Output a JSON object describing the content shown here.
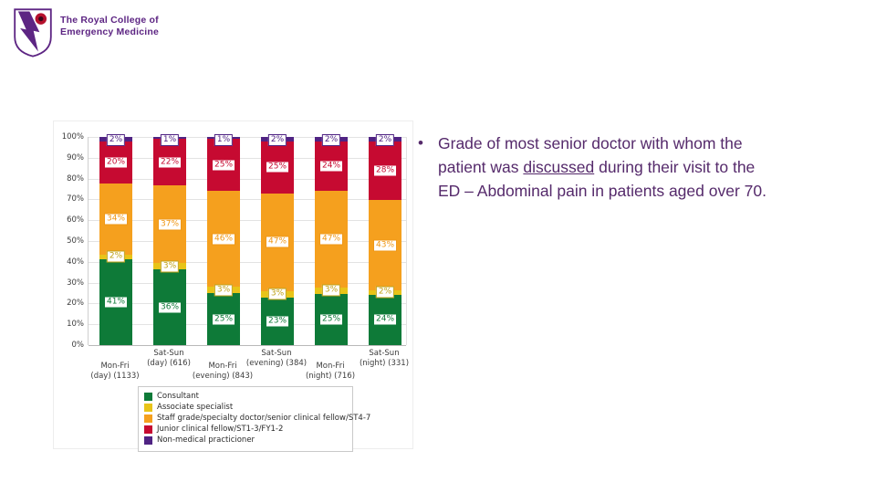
{
  "logo": {
    "org_line1": "The Royal College of",
    "org_line2": "Emergency Medicine",
    "brand_purple": "#5d2583",
    "poppy_red": "#b5112d"
  },
  "bullet_text": {
    "bullet": "•",
    "line1": "Grade of most senior doctor with whom the",
    "line2_pre": "patient was ",
    "line2_underlined": "discussed",
    "line2_post": " during their visit to the",
    "line3": "ED – Abdominal pain in patients aged over 70.",
    "text_color": "#552a6b"
  },
  "chart_data": {
    "type": "bar",
    "subtype": "stacked-percent",
    "title": "",
    "xlabel": "",
    "ylabel": "",
    "ylim": [
      0,
      100
    ],
    "grid": true,
    "legend_position": "bottom",
    "yticks": [
      "0%",
      "10%",
      "20%",
      "30%",
      "40%",
      "50%",
      "60%",
      "70%",
      "80%",
      "90%",
      "100%"
    ],
    "categories": [
      {
        "label_line1": "Mon-Fri",
        "label_line2": "(day) (1133)",
        "row": "lower"
      },
      {
        "label_line1": "Sat-Sun",
        "label_line2": "(day) (616)",
        "row": "upper"
      },
      {
        "label_line1": "Mon-Fri",
        "label_line2": "(evening) (843)",
        "row": "lower"
      },
      {
        "label_line1": "Sat-Sun",
        "label_line2": "(evening) (384)",
        "row": "upper"
      },
      {
        "label_line1": "Mon-Fri",
        "label_line2": "(night) (716)",
        "row": "lower"
      },
      {
        "label_line1": "Sat-Sun",
        "label_line2": "(night) (331)",
        "row": "upper"
      }
    ],
    "series": [
      {
        "name": "Consultant",
        "color": "#0e7a38",
        "label_color": "#0e7a38",
        "values": [
          41,
          36,
          25,
          23,
          25,
          24
        ]
      },
      {
        "name": "Associate specialist",
        "color": "#e8c418",
        "label_color": "#bfa116",
        "values": [
          2,
          3,
          3,
          3,
          3,
          2
        ]
      },
      {
        "name": "Staff grade/specialty doctor/senior clinical fellow/ST4-7",
        "color": "#f5a01e",
        "label_color": "#ef9716",
        "values": [
          34,
          37,
          46,
          47,
          47,
          43
        ]
      },
      {
        "name": "Junior clinical fellow/ST1-3/FY1-2",
        "color": "#c60a31",
        "label_color": "#c60a31",
        "values": [
          20,
          22,
          25,
          25,
          24,
          28
        ]
      },
      {
        "name": "Non-medical practicioner",
        "color": "#4f2383",
        "label_color": "#4f2383",
        "values": [
          2,
          1,
          1,
          2,
          2,
          2
        ]
      }
    ]
  }
}
